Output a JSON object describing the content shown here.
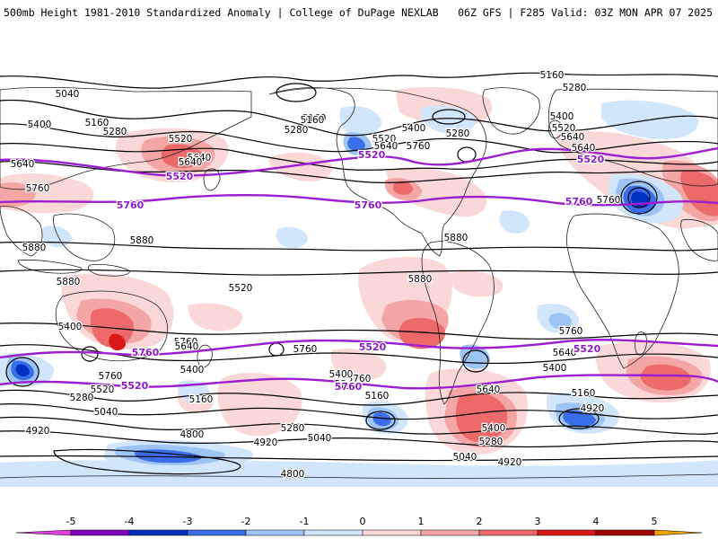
{
  "header": {
    "left_title": "500mb Height 1981-2010 Standardized Anomaly | College of DuPage NEXLAB",
    "right_title": "06Z GFS | F285 Valid: 03Z MON APR 07 2025"
  },
  "colors": {
    "anomaly_neg5": "#e040e0",
    "anomaly_neg4": "#8000c0",
    "anomaly_neg3": "#0030c0",
    "anomaly_neg2": "#3a6ee8",
    "anomaly_neg1": "#9ec4f5",
    "anomaly_neg05": "#d2e6fb",
    "anomaly_pos05": "#fbd8d8",
    "anomaly_pos1": "#f4a6a6",
    "anomaly_pos2": "#ec6a6a",
    "anomaly_pos3": "#d81818",
    "anomaly_pos4": "#a00000",
    "anomaly_pos5": "#f0a000",
    "highlight_contour": "#9b1fd1",
    "contour": "#000000",
    "coast": "#222222"
  },
  "colorbar": {
    "ticks": [
      "-5",
      "-4",
      "-3",
      "-2",
      "-1",
      "0",
      "1",
      "2",
      "3",
      "4",
      "5"
    ],
    "values": [
      -5,
      -4,
      -3,
      -2,
      -1,
      0,
      1,
      2,
      3,
      4,
      5
    ]
  },
  "contour_labels": [
    {
      "text": "5040"
    },
    {
      "text": "5400"
    },
    {
      "text": "5160"
    },
    {
      "text": "5280"
    },
    {
      "text": "5520"
    },
    {
      "text": "5640"
    },
    {
      "text": "5640"
    },
    {
      "text": "5760"
    },
    {
      "text": "5880"
    },
    {
      "text": "5880"
    },
    {
      "text": "5880"
    },
    {
      "text": "5400"
    },
    {
      "text": "5760"
    },
    {
      "text": "5160"
    },
    {
      "text": "5280"
    },
    {
      "text": "5400"
    },
    {
      "text": "5520"
    },
    {
      "text": "5640"
    },
    {
      "text": "5760"
    },
    {
      "text": "5160"
    },
    {
      "text": "5280"
    },
    {
      "text": "5400"
    },
    {
      "text": "5520"
    },
    {
      "text": "5640"
    },
    {
      "text": "5760"
    },
    {
      "text": "5880"
    },
    {
      "text": "5880"
    },
    {
      "text": "5760"
    },
    {
      "text": "5640"
    },
    {
      "text": "5400"
    },
    {
      "text": "5760"
    },
    {
      "text": "5520"
    },
    {
      "text": "5280"
    },
    {
      "text": "5040"
    },
    {
      "text": "4920"
    },
    {
      "text": "5640"
    },
    {
      "text": "5400"
    },
    {
      "text": "5160"
    },
    {
      "text": "5520"
    },
    {
      "text": "5280"
    },
    {
      "text": "4920"
    },
    {
      "text": "5040"
    },
    {
      "text": "4800"
    },
    {
      "text": "4800"
    },
    {
      "text": "5760"
    },
    {
      "text": "5640"
    },
    {
      "text": "5400"
    },
    {
      "text": "5160"
    },
    {
      "text": "5640"
    },
    {
      "text": "5280"
    },
    {
      "text": "5040"
    },
    {
      "text": "4920"
    },
    {
      "text": "5760"
    },
    {
      "text": "5520"
    },
    {
      "text": "5400"
    },
    {
      "text": "5160"
    },
    {
      "text": "4920"
    },
    {
      "text": "5280"
    },
    {
      "text": "5160"
    },
    {
      "text": "5640"
    },
    {
      "text": "5520"
    }
  ],
  "highlight_labels": [
    {
      "text": "5520"
    },
    {
      "text": "5520"
    },
    {
      "text": "5520"
    },
    {
      "text": "5760"
    },
    {
      "text": "5760"
    },
    {
      "text": "5760"
    },
    {
      "text": "5760"
    },
    {
      "text": "5520"
    },
    {
      "text": "5520"
    },
    {
      "text": "5520"
    },
    {
      "text": "5760"
    }
  ]
}
